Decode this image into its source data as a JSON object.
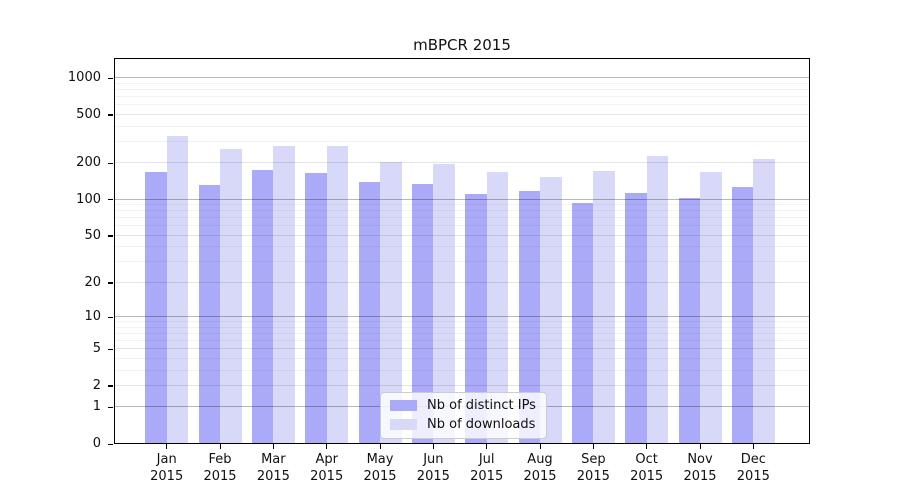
{
  "chart_data": {
    "type": "bar",
    "title": "mBPCR 2015",
    "scale": "log10(value+1)",
    "ylim": [
      0,
      1470
    ],
    "grid": true,
    "legend_position": "bottom-center-inside",
    "y_ticks": [
      0,
      1,
      2,
      5,
      10,
      20,
      50,
      100,
      200,
      500,
      1000
    ],
    "y_minor_ticks": [
      3,
      4,
      6,
      7,
      8,
      9,
      30,
      40,
      60,
      70,
      80,
      90,
      300,
      400,
      600,
      700,
      800,
      900
    ],
    "categories": [
      "Jan",
      "Feb",
      "Mar",
      "Apr",
      "May",
      "Jun",
      "Jul",
      "Aug",
      "Sep",
      "Oct",
      "Nov",
      "Dec"
    ],
    "year_label": "2015",
    "series": [
      {
        "name": "Nb of distinct IPs",
        "color": "#aaaaf9",
        "values": [
          170,
          132,
          176,
          167,
          139,
          134,
          112,
          118,
          94,
          114,
          103,
          127
        ]
      },
      {
        "name": "Nb of downloads",
        "color": "#d8d8f9",
        "values": [
          337,
          260,
          277,
          277,
          204,
          197,
          170,
          155,
          174,
          229,
          170,
          216
        ]
      }
    ]
  }
}
